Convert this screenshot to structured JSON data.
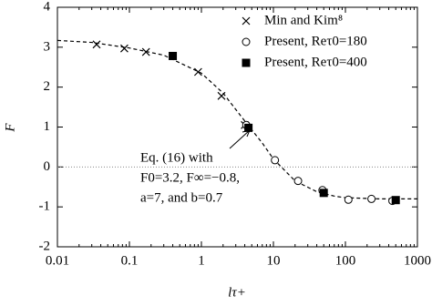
{
  "chart_data": {
    "type": "scatter",
    "xlabel": "lτ+",
    "ylabel": "F",
    "xlim": [
      0.01,
      1000
    ],
    "ylim": [
      -2,
      4
    ],
    "xlog": true,
    "zero_line": true,
    "xticks": [
      0.01,
      0.1,
      1,
      10,
      100,
      1000
    ],
    "yticks": [
      -2,
      -1,
      0,
      1,
      2,
      3,
      4
    ],
    "legend": "upper right",
    "series": [
      {
        "name": "Min and Kim⁸",
        "marker": "cross",
        "color": "#000000",
        "x": [
          0.035,
          0.085,
          0.17,
          0.4,
          0.9,
          1.9,
          4.0
        ],
        "values": [
          3.07,
          2.97,
          2.88,
          2.78,
          2.38,
          1.78,
          1.05
        ]
      },
      {
        "name": "Present, Reτ0=180",
        "marker": "circle",
        "color": "#000000",
        "x": [
          4.2,
          10.5,
          22,
          48,
          110,
          230,
          450
        ],
        "values": [
          1.05,
          0.17,
          -0.35,
          -0.58,
          -0.82,
          -0.8,
          -0.85
        ]
      },
      {
        "name": "Present, Reτ0=400",
        "marker": "square",
        "color": "#000000",
        "x": [
          0.4,
          4.5,
          50,
          500
        ],
        "values": [
          2.78,
          0.98,
          -0.65,
          -0.83
        ]
      }
    ],
    "curve": {
      "color": "#000000",
      "x": [
        0.01,
        0.03,
        0.1,
        0.3,
        1,
        2,
        4,
        7,
        10,
        20,
        40,
        70,
        100,
        300,
        1000
      ],
      "values": [
        3.17,
        3.12,
        2.98,
        2.8,
        2.35,
        1.85,
        1.15,
        0.6,
        0.2,
        -0.35,
        -0.62,
        -0.73,
        -0.77,
        -0.8,
        -0.8
      ]
    },
    "annotation": [
      "Eq. (16) with",
      "F0=3.2, F∞=−0.8,",
      "a=7, and b=0.7"
    ]
  }
}
